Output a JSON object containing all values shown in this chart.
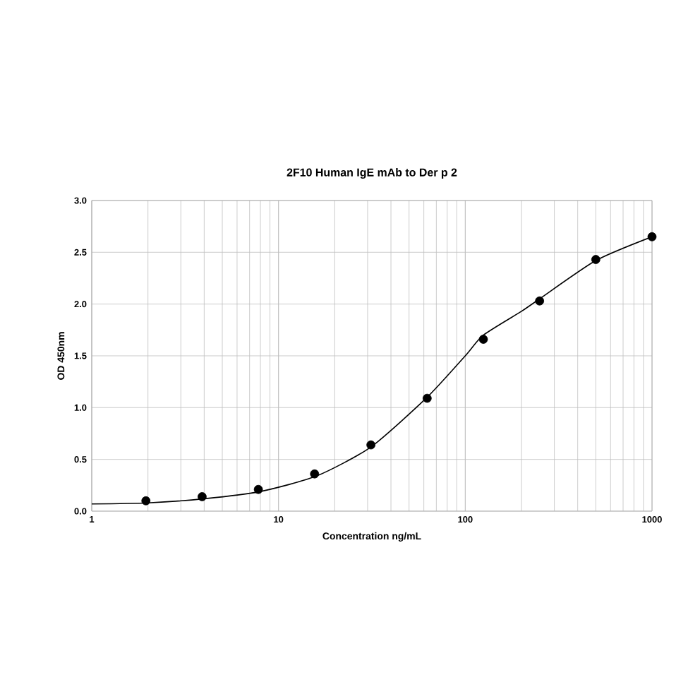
{
  "chart_data": {
    "type": "scatter",
    "title": "2F10 Human IgE mAb to Der p 2",
    "xlabel": "Concentration ng/mL",
    "ylabel": "OD 450nm",
    "log": "x",
    "xlim": [
      1,
      1000
    ],
    "xticks": [
      1,
      10,
      100,
      1000
    ],
    "ylim": [
      0,
      3.0
    ],
    "yticks": [
      {
        "value": 0,
        "label": "0.0"
      },
      {
        "value": 0.5,
        "label": "0.5"
      },
      {
        "value": 1,
        "label": "1.0"
      },
      {
        "value": 1.5,
        "label": "1.5"
      },
      {
        "value": 2,
        "label": "2.0"
      },
      {
        "value": 2.5,
        "label": "2.5"
      },
      {
        "value": 3,
        "label": "3.0"
      }
    ],
    "grid": true,
    "series": [
      {
        "type": "line",
        "marker": "none",
        "color": "#000000",
        "x": [
          1,
          2,
          4,
          8,
          16,
          31.25,
          62.5,
          100,
          125,
          200,
          250,
          500,
          1000
        ],
        "values": [
          0.07,
          0.08,
          0.12,
          0.19,
          0.34,
          0.62,
          1.1,
          1.5,
          1.7,
          1.93,
          2.05,
          2.42,
          2.65
        ]
      },
      {
        "marker": "circle",
        "color": "#000000",
        "x": [
          1.95,
          3.9,
          7.8,
          15.6,
          31.25,
          62.5,
          125,
          250,
          500,
          1000
        ],
        "values": [
          0.1,
          0.14,
          0.21,
          0.36,
          0.64,
          1.09,
          1.66,
          2.03,
          2.43,
          2.65
        ]
      }
    ]
  }
}
